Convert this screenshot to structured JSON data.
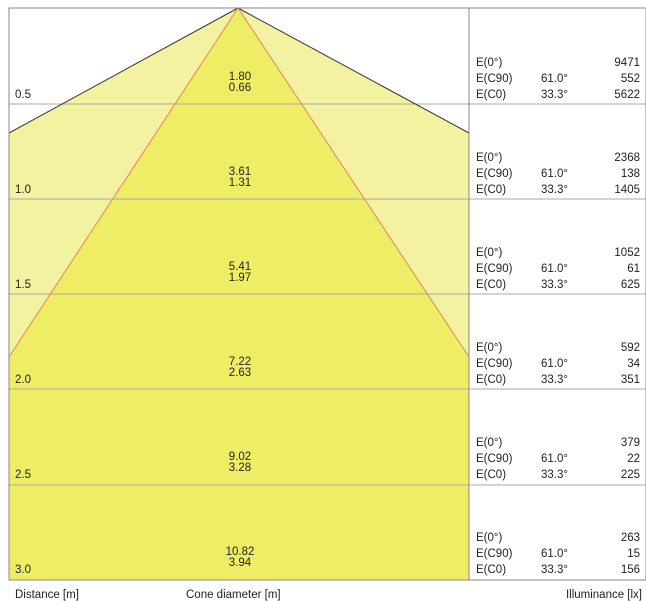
{
  "diagram": {
    "rows": [
      {
        "distance": "0.5",
        "diam_c90": "1.80",
        "diam_c0": "0.66",
        "e0_label": "E(0°)",
        "e0_value": "9471",
        "ec90_label": "E(C90)",
        "ec90_angle": "61.0°",
        "ec90_value": "552",
        "ec0_label": "E(C0)",
        "ec0_angle": "33.3°",
        "ec0_value": "5622"
      },
      {
        "distance": "1.0",
        "diam_c90": "3.61",
        "diam_c0": "1.31",
        "e0_label": "E(0°)",
        "e0_value": "2368",
        "ec90_label": "E(C90)",
        "ec90_angle": "61.0°",
        "ec90_value": "138",
        "ec0_label": "E(C0)",
        "ec0_angle": "33.3°",
        "ec0_value": "1405"
      },
      {
        "distance": "1.5",
        "diam_c90": "5.41",
        "diam_c0": "1.97",
        "e0_label": "E(0°)",
        "e0_value": "1052",
        "ec90_label": "E(C90)",
        "ec90_angle": "61.0°",
        "ec90_value": "61",
        "ec0_label": "E(C0)",
        "ec0_angle": "33.3°",
        "ec0_value": "625"
      },
      {
        "distance": "2.0",
        "diam_c90": "7.22",
        "diam_c0": "2.63",
        "e0_label": "E(0°)",
        "e0_value": "592",
        "ec90_label": "E(C90)",
        "ec90_angle": "61.0°",
        "ec90_value": "34",
        "ec0_label": "E(C0)",
        "ec0_angle": "33.3°",
        "ec0_value": "351"
      },
      {
        "distance": "2.5",
        "diam_c90": "9.02",
        "diam_c0": "3.28",
        "e0_label": "E(0°)",
        "e0_value": "379",
        "ec90_label": "E(C90)",
        "ec90_angle": "61.0°",
        "ec90_value": "22",
        "ec0_label": "E(C0)",
        "ec0_angle": "33.3°",
        "ec0_value": "225"
      },
      {
        "distance": "3.0",
        "diam_c90": "10.82",
        "diam_c0": "3.94",
        "e0_label": "E(0°)",
        "e0_value": "263",
        "ec90_label": "E(C90)",
        "ec90_angle": "61.0°",
        "ec90_value": "15",
        "ec0_label": "E(C0)",
        "ec0_angle": "33.3°",
        "ec0_value": "156"
      }
    ],
    "footer": {
      "distance_label": "Distance [m]",
      "cone_label": "Cone diameter [m]",
      "illuminance_label": "Illuminance [lx]"
    },
    "colors": {
      "c0_fill": "#eeee66",
      "c90_fill": "#f2f2a0",
      "c0_edge": "#f07f5a",
      "c90_edge": "#333333",
      "grid": "#aaaaaa",
      "border": "#888888"
    }
  }
}
